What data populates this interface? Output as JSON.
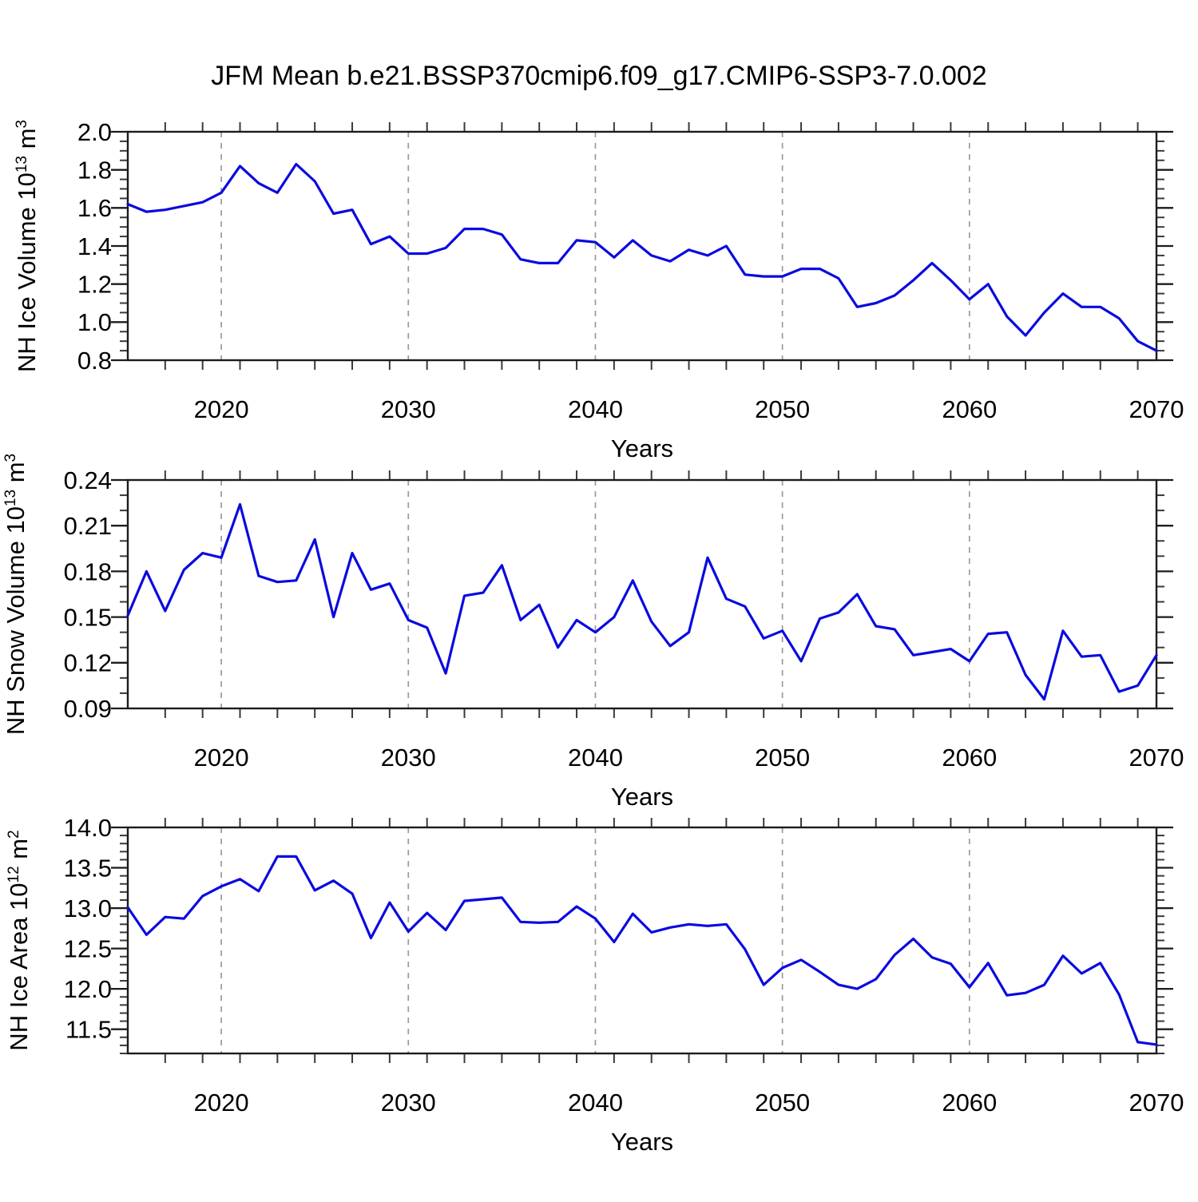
{
  "title": "JFM Mean b.e21.BSSP370cmip6.f09_g17.CMIP6-SSP3-7.0.002",
  "xlabel": "Years",
  "x_tick_labels": [
    "2020",
    "2030",
    "2040",
    "2050",
    "2060",
    "2070"
  ],
  "years": [
    2015,
    2016,
    2017,
    2018,
    2019,
    2020,
    2021,
    2022,
    2023,
    2024,
    2025,
    2026,
    2027,
    2028,
    2029,
    2030,
    2031,
    2032,
    2033,
    2034,
    2035,
    2036,
    2037,
    2038,
    2039,
    2040,
    2041,
    2042,
    2043,
    2044,
    2045,
    2046,
    2047,
    2048,
    2049,
    2050,
    2051,
    2052,
    2053,
    2054,
    2055,
    2056,
    2057,
    2058,
    2059,
    2060,
    2061,
    2062,
    2063,
    2064,
    2065,
    2066,
    2067,
    2068,
    2069,
    2070
  ],
  "line_color": "#0a0ae0",
  "grid_color": "#9a9a9a",
  "chart_data": [
    {
      "type": "line",
      "name": "nh-ice-volume",
      "title": "JFM Mean b.e21.BSSP370cmip6.f09_g17.CMIP6-SSP3-7.0.002",
      "xlabel": "Years",
      "ylabel": "NH Ice Volume 10^13 m^3",
      "ylabel_prefix": "NH Ice Volume 10",
      "ylabel_sup": "13",
      "ylabel_mid": " m",
      "ylabel_sup2": "3",
      "x_range": [
        2015,
        2070
      ],
      "x_step": 1,
      "ylim": [
        0.8,
        2.0
      ],
      "ytick_values": [
        0.8,
        1.0,
        1.2,
        1.4,
        1.6,
        1.8,
        2.0
      ],
      "ytick_labels": [
        "0.8",
        "1.0",
        "1.2",
        "1.4",
        "1.6",
        "1.8",
        "2.0"
      ],
      "ytick_minor_step": 0.05,
      "grid_vertical_dashed_at": [
        2020,
        2030,
        2040,
        2050,
        2060
      ],
      "legend": "none",
      "values": [
        1.62,
        1.58,
        1.59,
        1.61,
        1.63,
        1.68,
        1.82,
        1.73,
        1.68,
        1.83,
        1.74,
        1.57,
        1.59,
        1.41,
        1.45,
        1.36,
        1.36,
        1.39,
        1.49,
        1.49,
        1.46,
        1.33,
        1.31,
        1.31,
        1.43,
        1.42,
        1.34,
        1.43,
        1.35,
        1.32,
        1.38,
        1.35,
        1.4,
        1.25,
        1.24,
        1.24,
        1.28,
        1.28,
        1.23,
        1.08,
        1.1,
        1.14,
        1.22,
        1.31,
        1.22,
        1.12,
        1.2,
        1.03,
        0.93,
        1.05,
        1.15,
        1.08,
        1.08,
        1.02,
        0.9,
        0.85
      ]
    },
    {
      "type": "line",
      "name": "nh-snow-volume",
      "title": "",
      "xlabel": "Years",
      "ylabel": "NH Snow Volume 10^13 m^3",
      "ylabel_prefix": "NH Snow Volume 10",
      "ylabel_sup": "13",
      "ylabel_mid": " m",
      "ylabel_sup2": "3",
      "x_range": [
        2015,
        2070
      ],
      "x_step": 1,
      "ylim": [
        0.09,
        0.24
      ],
      "ytick_values": [
        0.09,
        0.12,
        0.15,
        0.18,
        0.21,
        0.24
      ],
      "ytick_labels": [
        "0.09",
        "0.12",
        "0.15",
        "0.18",
        "0.21",
        "0.24"
      ],
      "ytick_minor_step": 0.01,
      "grid_vertical_dashed_at": [
        2020,
        2030,
        2040,
        2050,
        2060
      ],
      "legend": "none",
      "values": [
        0.151,
        0.18,
        0.154,
        0.181,
        0.192,
        0.189,
        0.224,
        0.177,
        0.173,
        0.174,
        0.201,
        0.15,
        0.192,
        0.168,
        0.172,
        0.148,
        0.143,
        0.113,
        0.164,
        0.166,
        0.184,
        0.148,
        0.158,
        0.13,
        0.148,
        0.14,
        0.15,
        0.174,
        0.147,
        0.131,
        0.14,
        0.189,
        0.162,
        0.157,
        0.136,
        0.141,
        0.121,
        0.149,
        0.153,
        0.165,
        0.144,
        0.142,
        0.125,
        0.127,
        0.129,
        0.121,
        0.139,
        0.14,
        0.112,
        0.096,
        0.141,
        0.124,
        0.125,
        0.101,
        0.105,
        0.125
      ]
    },
    {
      "type": "line",
      "name": "nh-ice-area",
      "title": "",
      "xlabel": "Years",
      "ylabel": "NH Ice Area 10^12 m^2",
      "ylabel_prefix": "NH Ice Area 10",
      "ylabel_sup": "12",
      "ylabel_mid": " m",
      "ylabel_sup2": "2",
      "x_range": [
        2015,
        2070
      ],
      "x_step": 1,
      "ylim": [
        11.2,
        14.0
      ],
      "ytick_values": [
        11.5,
        12.0,
        12.5,
        13.0,
        13.5,
        14.0
      ],
      "ytick_labels": [
        "11.5",
        "12.0",
        "12.5",
        "13.0",
        "13.5",
        "14.0"
      ],
      "ytick_minor_step": 0.1,
      "grid_vertical_dashed_at": [
        2020,
        2030,
        2040,
        2050,
        2060
      ],
      "legend": "none",
      "values": [
        13.01,
        12.67,
        12.89,
        12.87,
        13.15,
        13.27,
        13.36,
        13.21,
        13.64,
        13.64,
        13.22,
        13.34,
        13.18,
        12.63,
        13.07,
        12.71,
        12.94,
        12.73,
        13.09,
        13.11,
        13.13,
        12.83,
        12.82,
        12.83,
        13.02,
        12.87,
        12.58,
        12.93,
        12.7,
        12.76,
        12.8,
        12.78,
        12.8,
        12.49,
        12.05,
        12.26,
        12.36,
        12.21,
        12.05,
        12.0,
        12.12,
        12.42,
        12.62,
        12.39,
        12.31,
        12.02,
        12.32,
        11.92,
        11.95,
        12.05,
        12.41,
        12.19,
        12.32,
        11.93,
        11.34,
        11.31
      ]
    }
  ]
}
